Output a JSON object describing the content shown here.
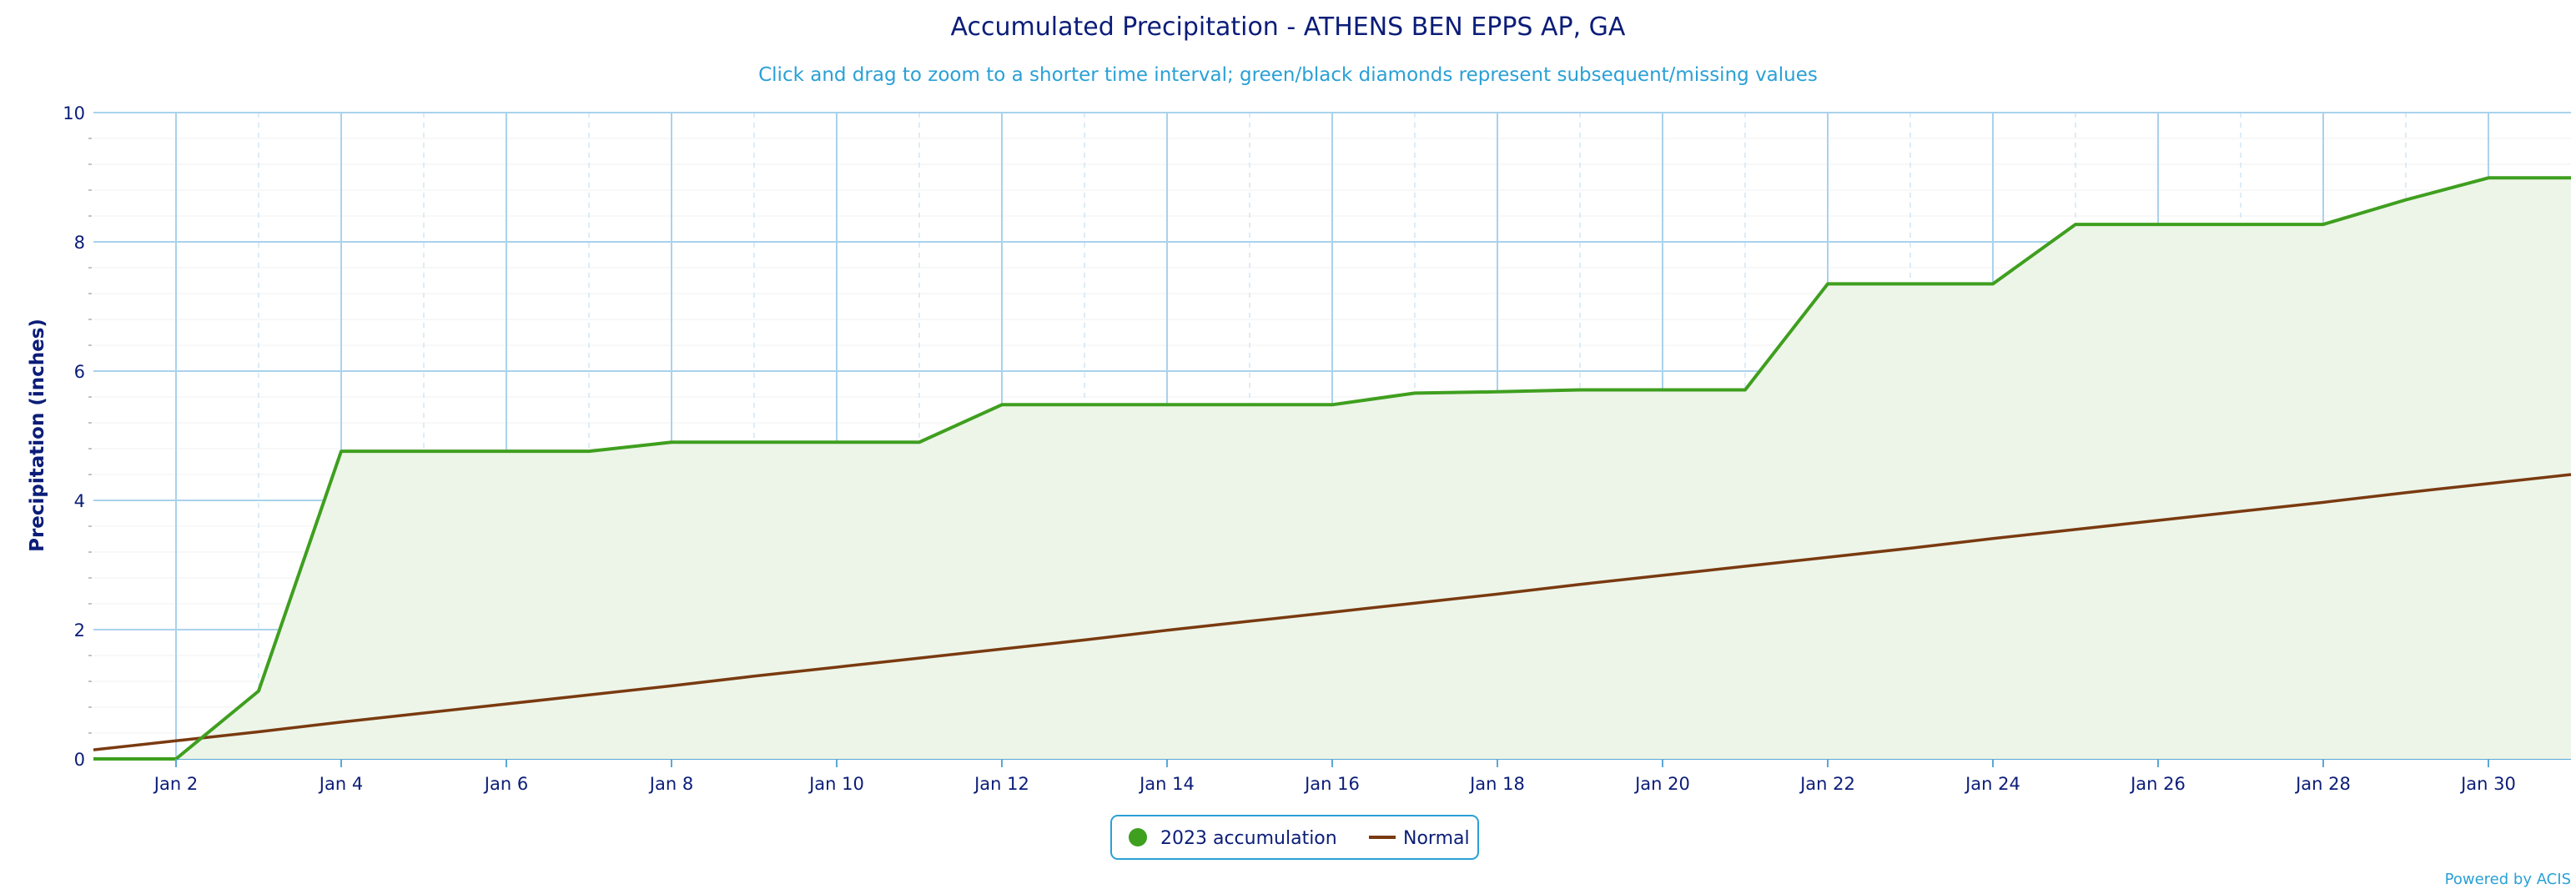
{
  "chart_data": {
    "type": "area",
    "title": "Accumulated Precipitation - ATHENS BEN EPPS AP, GA",
    "subtitle": "Click and drag to zoom to a shorter time interval; green/black diamonds represent subsequent/missing values",
    "ylabel": "Precipitation (inches)",
    "xlabel": "",
    "ylim": [
      0,
      10
    ],
    "xlim": [
      "Jan 1",
      "Jan 31"
    ],
    "yticks": [
      0,
      2,
      4,
      6,
      8,
      10
    ],
    "xticks": [
      "Jan 2",
      "Jan 4",
      "Jan 6",
      "Jan 8",
      "Jan 10",
      "Jan 12",
      "Jan 14",
      "Jan 16",
      "Jan 18",
      "Jan 20",
      "Jan 22",
      "Jan 24",
      "Jan 26",
      "Jan 28",
      "Jan 30"
    ],
    "grid": true,
    "legend_position": "bottom-center",
    "x": [
      "Jan 1",
      "Jan 2",
      "Jan 3",
      "Jan 4",
      "Jan 5",
      "Jan 6",
      "Jan 7",
      "Jan 8",
      "Jan 9",
      "Jan 10",
      "Jan 11",
      "Jan 12",
      "Jan 13",
      "Jan 14",
      "Jan 15",
      "Jan 16",
      "Jan 17",
      "Jan 18",
      "Jan 19",
      "Jan 20",
      "Jan 21",
      "Jan 22",
      "Jan 23",
      "Jan 24",
      "Jan 25",
      "Jan 26",
      "Jan 27",
      "Jan 28",
      "Jan 29",
      "Jan 30",
      "Jan 31"
    ],
    "series": [
      {
        "name": "2023 accumulation",
        "color": "#3f9f1f",
        "fill": "#edf5e9",
        "values": [
          0.0,
          0.0,
          1.05,
          4.76,
          4.76,
          4.76,
          4.76,
          4.9,
          4.9,
          4.9,
          4.9,
          5.48,
          5.48,
          5.48,
          5.48,
          5.48,
          5.66,
          5.68,
          5.71,
          5.71,
          5.71,
          7.35,
          7.35,
          7.35,
          8.27,
          8.27,
          8.27,
          8.27,
          8.65,
          8.99,
          8.99
        ]
      },
      {
        "name": "Normal",
        "color": "#7a3a10",
        "values": [
          0.14,
          0.28,
          0.42,
          0.57,
          0.71,
          0.85,
          0.99,
          1.13,
          1.28,
          1.42,
          1.56,
          1.7,
          1.84,
          1.99,
          2.13,
          2.27,
          2.41,
          2.55,
          2.7,
          2.84,
          2.98,
          3.12,
          3.26,
          3.41,
          3.55,
          3.69,
          3.83,
          3.97,
          4.12,
          4.26,
          4.4
        ]
      }
    ]
  },
  "credit": "Powered by ACIS"
}
